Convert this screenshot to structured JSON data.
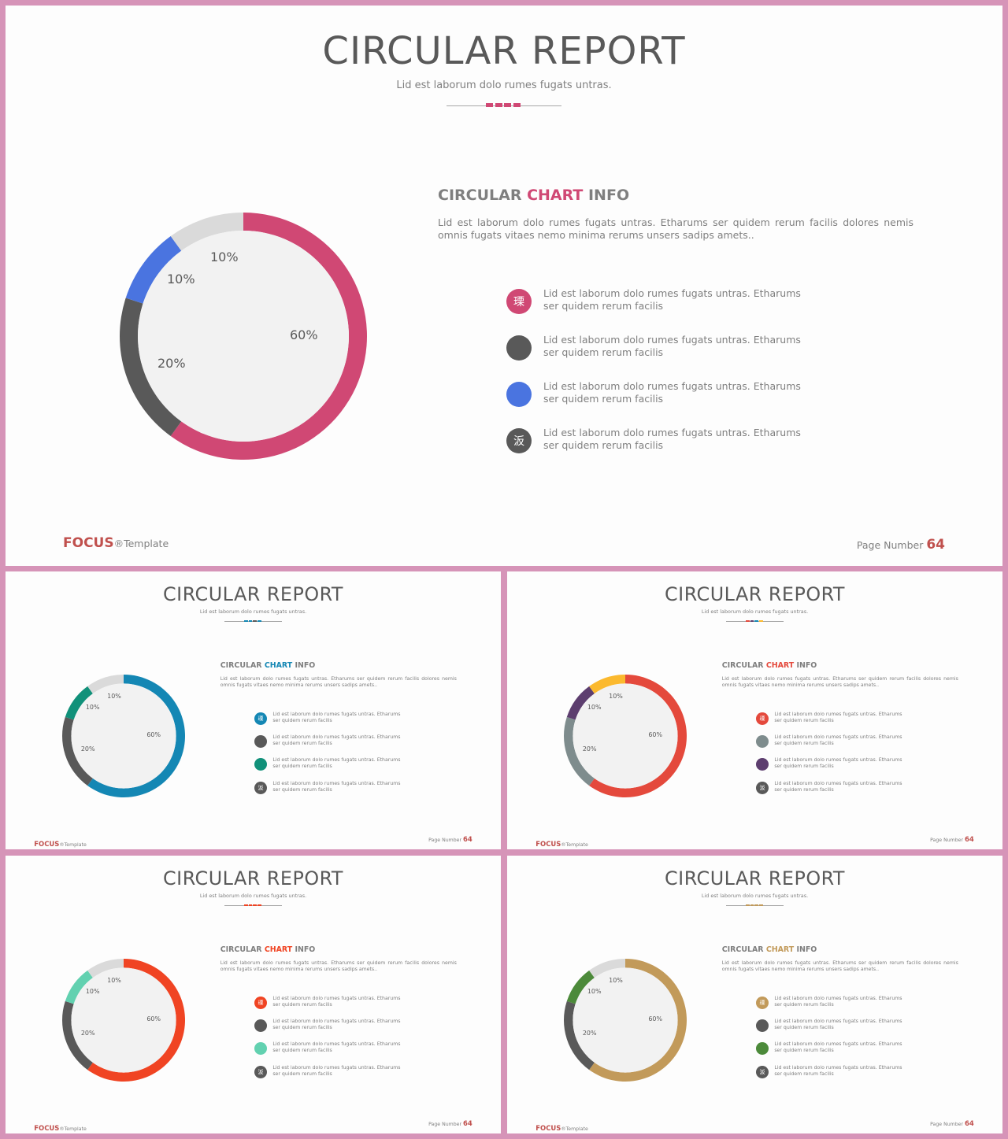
{
  "slides": [
    {
      "title": "CIRCULAR REPORT",
      "subtitle": "Lid est laborum dolo rumes fugats untras.",
      "info_title_prefix": "CIRCULAR ",
      "info_title_highlight": "CHART",
      "info_title_suffix": " INFO",
      "info_body": "Lid est laborum dolo rumes fugats untras. Etharums ser quidem rerum facilis dolores nemis omnis fugats vitaes nemo minima rerums unsers sadips amets..",
      "legend": [
        {
          "icon": "瑮",
          "text": "Lid est laborum dolo rumes fugats untras. Etharums ser quidem rerum facilis"
        },
        {
          "icon": "",
          "text": "Lid est laborum dolo rumes fugats untras. Etharums ser quidem rerum facilis"
        },
        {
          "icon": "",
          "text": "Lid est laborum dolo rumes fugats untras. Etharums ser quidem rerum facilis"
        },
        {
          "icon": "汳",
          "text": "Lid est laborum dolo rumes fugats untras. Etharums ser quidem rerum facilis"
        }
      ],
      "brand": "FOCUS",
      "brand_mark": "®Template",
      "page_label": "Page Number ",
      "page_number": "64",
      "colors": {
        "accent": "#d04874",
        "c2": "#595959",
        "c3": "#4a74e0",
        "c4": "#dadada",
        "c5": "#595959",
        "dashes": [
          "#d04874",
          "#d04874",
          "#d04874",
          "#d04874"
        ]
      }
    },
    {
      "title": "CIRCULAR REPORT",
      "subtitle": "Lid est laborum dolo rumes fugats untras.",
      "info_title_prefix": "CIRCULAR ",
      "info_title_highlight": "CHART",
      "info_title_suffix": " INFO",
      "info_body": "Lid est laborum dolo rumes fugats untras. Etharums ser quidem rerum facilis dolores nemis omnis fugats vitaes nemo minima rerums unsers sadips amets..",
      "legend": [
        {
          "icon": "瑮",
          "text": "Lid est laborum dolo rumes fugats untras. Etharums ser quidem rerum facilis"
        },
        {
          "icon": "",
          "text": "Lid est laborum dolo rumes fugats untras. Etharums ser quidem rerum facilis"
        },
        {
          "icon": "",
          "text": "Lid est laborum dolo rumes fugats untras. Etharums ser quidem rerum facilis"
        },
        {
          "icon": "汳",
          "text": "Lid est laborum dolo rumes fugats untras. Etharums ser quidem rerum facilis"
        }
      ],
      "brand": "FOCUS",
      "brand_mark": "®Template",
      "page_label": "Page Number ",
      "page_number": "64",
      "colors": {
        "accent": "#1487b4",
        "c2": "#595959",
        "c3": "#11917a",
        "c4": "#dadada",
        "c5": "#595959",
        "dashes": [
          "#1487b4",
          "#1487b4",
          "#595959",
          "#1487b4"
        ]
      }
    },
    {
      "title": "CIRCULAR REPORT",
      "subtitle": "Lid est laborum dolo rumes fugats untras.",
      "info_title_prefix": "CIRCULAR ",
      "info_title_highlight": "CHART",
      "info_title_suffix": " INFO",
      "info_body": "Lid est laborum dolo rumes fugats untras. Etharums ser quidem rerum facilis dolores nemis omnis fugats vitaes nemo minima rerums unsers sadips amets..",
      "legend": [
        {
          "icon": "瑮",
          "text": "Lid est laborum dolo rumes fugats untras. Etharums ser quidem rerum facilis"
        },
        {
          "icon": "",
          "text": "Lid est laborum dolo rumes fugats untras. Etharums ser quidem rerum facilis"
        },
        {
          "icon": "",
          "text": "Lid est laborum dolo rumes fugats untras. Etharums ser quidem rerum facilis"
        },
        {
          "icon": "汳",
          "text": "Lid est laborum dolo rumes fugats untras. Etharums ser quidem rerum facilis"
        }
      ],
      "brand": "FOCUS",
      "brand_mark": "®Template",
      "page_label": "Page Number ",
      "page_number": "64",
      "colors": {
        "accent": "#e4493c",
        "c2": "#7e8c8d",
        "c3": "#5d3e6f",
        "c4": "#fbb92e",
        "c5": "#7e8c8d",
        "dashes": [
          "#e4493c",
          "#5d3e6f",
          "#1487b4",
          "#fbb92e"
        ]
      }
    },
    {
      "title": "CIRCULAR REPORT",
      "subtitle": "Lid est laborum dolo rumes fugats untras.",
      "info_title_prefix": "CIRCULAR ",
      "info_title_highlight": "CHART",
      "info_title_suffix": " INFO",
      "info_body": "Lid est laborum dolo rumes fugats untras. Etharums ser quidem rerum facilis dolores nemis omnis fugats vitaes nemo minima rerums unsers sadips amets..",
      "legend": [
        {
          "icon": "瑮",
          "text": "Lid est laborum dolo rumes fugats untras. Etharums ser quidem rerum facilis"
        },
        {
          "icon": "",
          "text": "Lid est laborum dolo rumes fugats untras. Etharums ser quidem rerum facilis"
        },
        {
          "icon": "",
          "text": "Lid est laborum dolo rumes fugats untras. Etharums ser quidem rerum facilis"
        },
        {
          "icon": "汳",
          "text": "Lid est laborum dolo rumes fugats untras. Etharums ser quidem rerum facilis"
        }
      ],
      "brand": "FOCUS",
      "brand_mark": "®Template",
      "page_label": "Page Number ",
      "page_number": "64",
      "colors": {
        "accent": "#f04423",
        "c2": "#595959",
        "c3": "#62d1b0",
        "c4": "#dadada",
        "c5": "#595959",
        "dashes": [
          "#f04423",
          "#f04423",
          "#f04423",
          "#f04423"
        ]
      }
    },
    {
      "title": "CIRCULAR REPORT",
      "subtitle": "Lid est laborum dolo rumes fugats untras.",
      "info_title_prefix": "CIRCULAR ",
      "info_title_highlight": "CHART",
      "info_title_suffix": " INFO",
      "info_body": "Lid est laborum dolo rumes fugats untras. Etharums ser quidem rerum facilis dolores nemis omnis fugats vitaes nemo minima rerums unsers sadips amets..",
      "legend": [
        {
          "icon": "瑮",
          "text": "Lid est laborum dolo rumes fugats untras. Etharums ser quidem rerum facilis"
        },
        {
          "icon": "",
          "text": "Lid est laborum dolo rumes fugats untras. Etharums ser quidem rerum facilis"
        },
        {
          "icon": "",
          "text": "Lid est laborum dolo rumes fugats untras. Etharums ser quidem rerum facilis"
        },
        {
          "icon": "汳",
          "text": "Lid est laborum dolo rumes fugats untras. Etharums ser quidem rerum facilis"
        }
      ],
      "brand": "FOCUS",
      "brand_mark": "®Template",
      "page_label": "Page Number ",
      "page_number": "64",
      "colors": {
        "accent": "#c29a5a",
        "c2": "#595959",
        "c3": "#4c8a3a",
        "c4": "#dadada",
        "c5": "#595959",
        "dashes": [
          "#c29a5a",
          "#c29a5a",
          "#c29a5a",
          "#c29a5a"
        ]
      }
    }
  ],
  "chart_data": {
    "type": "pie",
    "categories": [
      "60%",
      "20%",
      "10%",
      "10%"
    ],
    "values": [
      60,
      20,
      10,
      10
    ],
    "labels": [
      "60%",
      "20%",
      "10%",
      "10%"
    ]
  }
}
